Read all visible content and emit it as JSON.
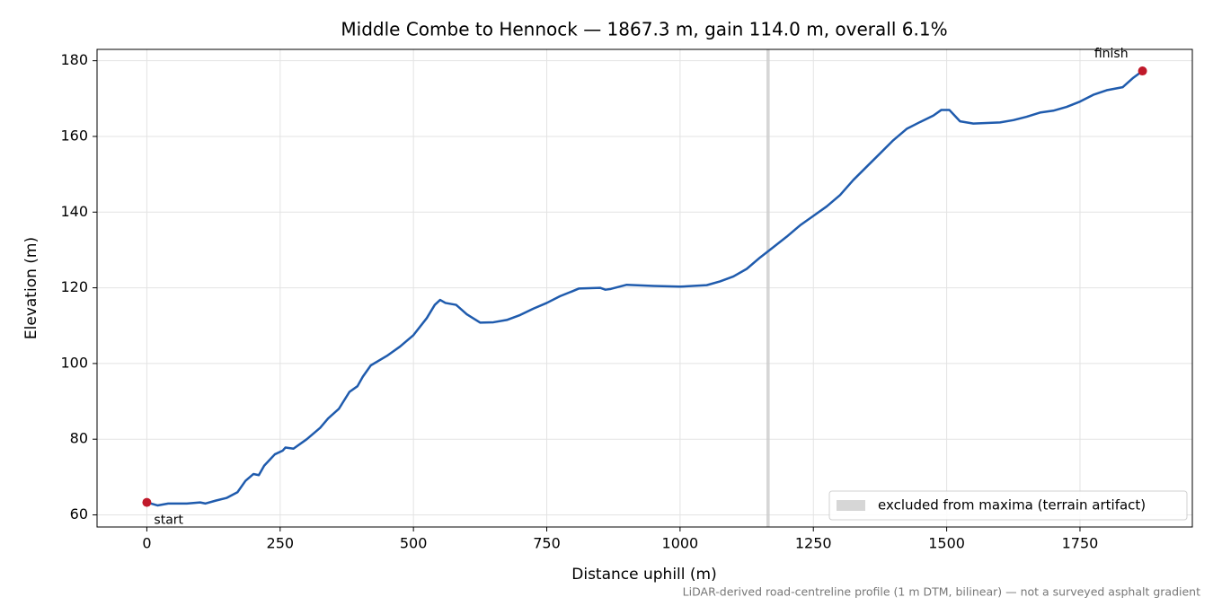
{
  "chart_data": {
    "type": "line",
    "title": "Middle Combe to Hennock — 1867.3 m, gain 114.0 m, overall 6.1%",
    "x_label": "Distance uphill (m)",
    "y_label": "Elevation (m)",
    "footnote": "LiDAR-derived road-centreline profile (1 m DTM, bilinear) — not a surveyed asphalt gradient",
    "color": "#1f5bad",
    "x": [
      0,
      20,
      40,
      75,
      100,
      110,
      130,
      150,
      170,
      185,
      200,
      210,
      220,
      240,
      255,
      260,
      275,
      300,
      325,
      340,
      360,
      380,
      395,
      405,
      420,
      450,
      475,
      500,
      525,
      540,
      550,
      560,
      580,
      600,
      625,
      650,
      675,
      700,
      725,
      750,
      775,
      800,
      810,
      850,
      860,
      870,
      900,
      950,
      1000,
      1050,
      1075,
      1100,
      1125,
      1150,
      1170,
      1200,
      1225,
      1250,
      1275,
      1300,
      1325,
      1350,
      1375,
      1400,
      1425,
      1450,
      1475,
      1490,
      1505,
      1525,
      1550,
      1600,
      1625,
      1650,
      1675,
      1700,
      1725,
      1750,
      1775,
      1800,
      1830,
      1850,
      1867.3
    ],
    "values": [
      63.3,
      62.5,
      63,
      63,
      63.3,
      63,
      63.8,
      64.5,
      66,
      69,
      70.8,
      70.5,
      73,
      76,
      77,
      77.8,
      77.5,
      80,
      83,
      85.5,
      88,
      92.5,
      94,
      96.5,
      99.5,
      102,
      104.5,
      107.5,
      112,
      115.5,
      116.8,
      116,
      115.5,
      113,
      110.8,
      110.9,
      111.5,
      112.8,
      114.5,
      116,
      117.8,
      119.2,
      119.8,
      120,
      119.5,
      119.7,
      120.8,
      120.5,
      120.3,
      120.7,
      121.7,
      123,
      125,
      128,
      130.2,
      133.5,
      136.5,
      139,
      141.5,
      144.5,
      148.5,
      152,
      155.5,
      159,
      162,
      163.8,
      165.5,
      167,
      167,
      164,
      163.4,
      163.7,
      164.3,
      165.2,
      166.3,
      166.8,
      167.8,
      169.2,
      171,
      172.2,
      173,
      175.5,
      177.3
    ],
    "markers": [
      {
        "label": "start",
        "x": 0,
        "y": 63.3
      },
      {
        "label": "finish",
        "x": 1867.3,
        "y": 177.3
      }
    ],
    "marker_color": "#c0192a",
    "span": {
      "range": [
        1162,
        1168
      ],
      "label": "excluded from maxima (terrain artifact)",
      "color": "#cccccc"
    },
    "legend": "lower right",
    "xlim": [
      -93.4,
      1960.7
    ],
    "ylim": [
      56.8,
      183.0
    ],
    "xticks": [
      0,
      250,
      500,
      750,
      1000,
      1250,
      1500,
      1750
    ],
    "yticks": [
      60,
      80,
      100,
      120,
      140,
      160,
      180
    ],
    "grid": true
  }
}
